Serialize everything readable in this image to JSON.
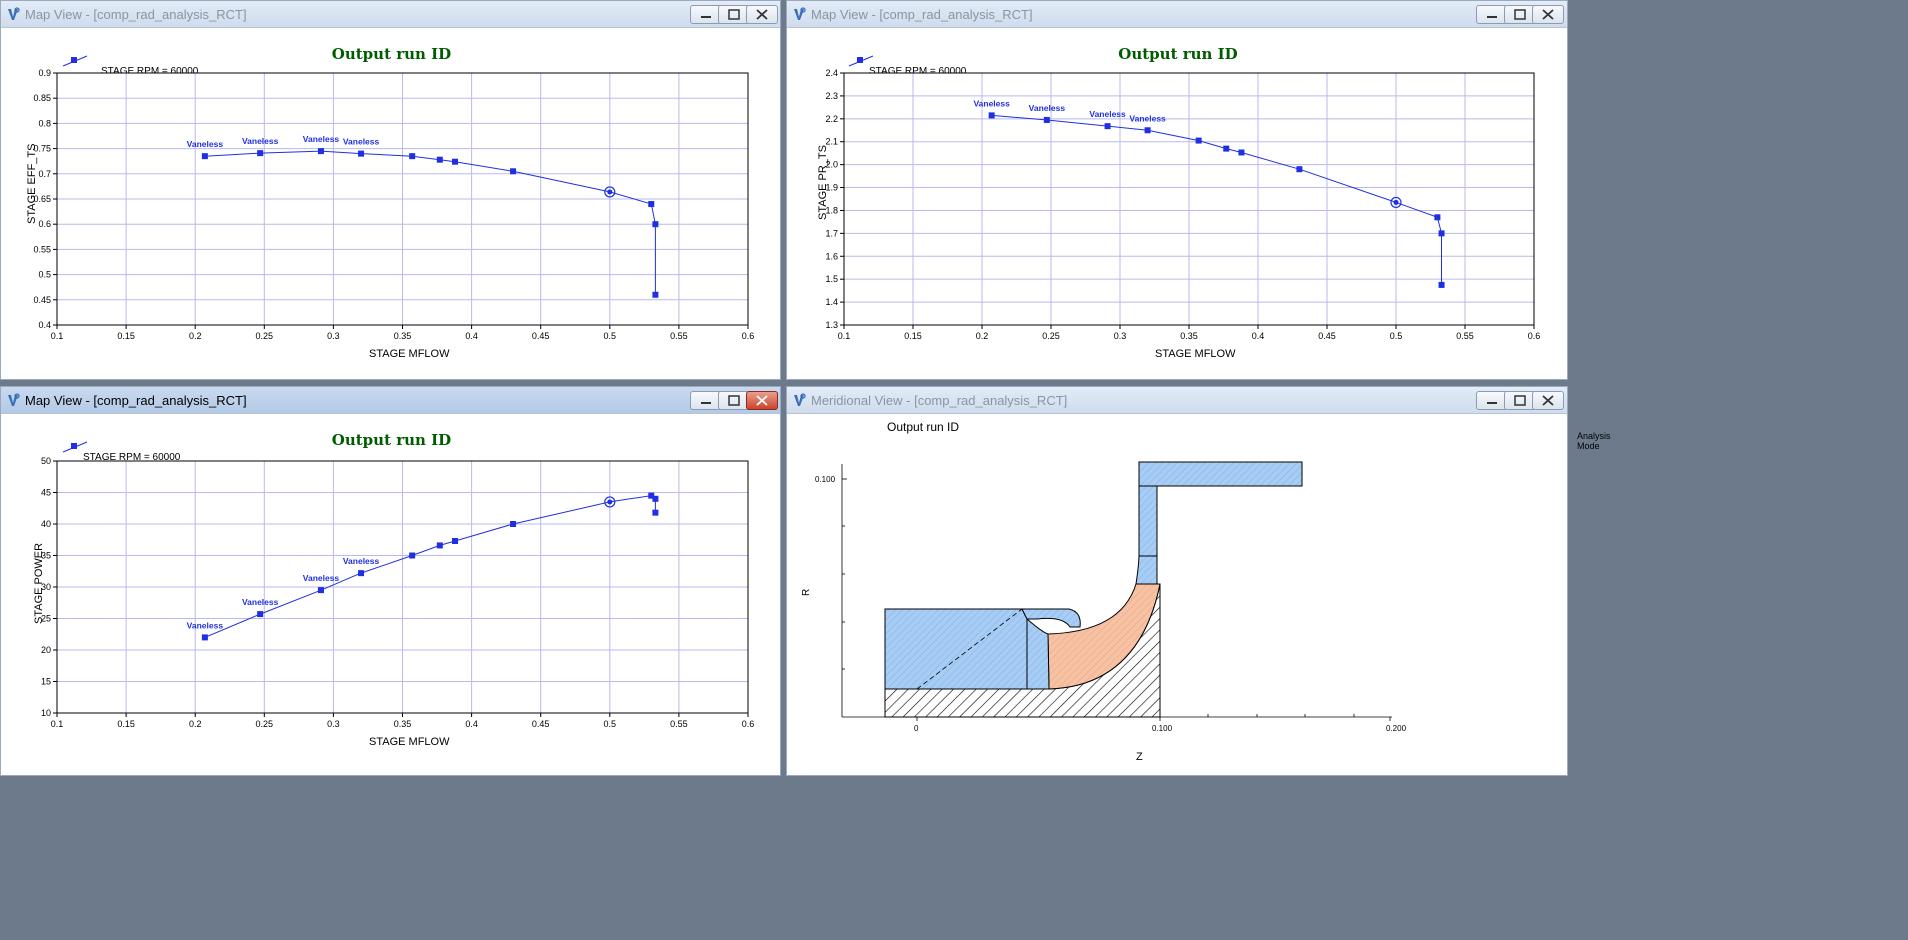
{
  "windows": {
    "eff": {
      "title": "Map View - [comp_rad_analysis_RCT]"
    },
    "pr": {
      "title": "Map View - [comp_rad_analysis_RCT]"
    },
    "power": {
      "title": "Map View - [comp_rad_analysis_RCT]"
    },
    "meridional": {
      "title": "Meridional View - [comp_rad_analysis_RCT]",
      "plot_title": "Output run ID",
      "mode_label": "Analysis Mode",
      "xlabel": "Z",
      "ylabel": "R",
      "x_ticks": [
        "0",
        "0.100",
        "0.200"
      ],
      "y_ticks": [
        "0.100"
      ],
      "colors": {
        "stationary": "#a8cdf5",
        "impeller": "#f7c2a3",
        "hub": "#000000"
      }
    }
  },
  "chart_data": [
    {
      "type": "line",
      "title": "Output run ID",
      "legend": "STAGE RPM = 60000",
      "xlabel": "STAGE MFLOW",
      "ylabel": "STAGE EFF_TS",
      "xlim": [
        0.1,
        0.6
      ],
      "ylim": [
        0.4,
        0.9
      ],
      "x_ticks": [
        "0.1",
        "0.15",
        "0.2",
        "0.25",
        "0.3",
        "0.35",
        "0.4",
        "0.45",
        "0.5",
        "0.55",
        "0.6"
      ],
      "y_ticks": [
        "0.4",
        "0.45",
        "0.5",
        "0.55",
        "0.6",
        "0.65",
        "0.7",
        "0.75",
        "0.8",
        "0.85",
        "0.9"
      ],
      "grid": true,
      "design_point": {
        "x": 0.5,
        "y": 0.664
      },
      "series": [
        {
          "name": "STAGE RPM = 60000",
          "x": [
            0.207,
            0.247,
            0.291,
            0.32,
            0.357,
            0.377,
            0.388,
            0.43,
            0.5,
            0.53,
            0.533,
            0.533
          ],
          "y": [
            0.735,
            0.741,
            0.745,
            0.74,
            0.735,
            0.728,
            0.724,
            0.705,
            0.664,
            0.64,
            0.6,
            0.46
          ],
          "labels": [
            "Vaneless",
            "Vaneless",
            "Vaneless",
            "Vaneless",
            "",
            "",
            "",
            "",
            "",
            "",
            "",
            ""
          ]
        }
      ]
    },
    {
      "type": "line",
      "title": "Output run ID",
      "legend": "STAGE RPM = 60000",
      "xlabel": "STAGE MFLOW",
      "ylabel": "STAGE PR_TS",
      "xlim": [
        0.1,
        0.6
      ],
      "ylim": [
        1.3,
        2.4
      ],
      "x_ticks": [
        "0.1",
        "0.15",
        "0.2",
        "0.25",
        "0.3",
        "0.35",
        "0.4",
        "0.45",
        "0.5",
        "0.55",
        "0.6"
      ],
      "y_ticks": [
        "1.3",
        "1.4",
        "1.5",
        "1.6",
        "1.7",
        "1.8",
        "1.9",
        "2.0",
        "2.1",
        "2.2",
        "2.3",
        "2.4"
      ],
      "grid": true,
      "design_point": {
        "x": 0.5,
        "y": 1.835
      },
      "series": [
        {
          "name": "STAGE RPM = 60000",
          "x": [
            0.207,
            0.247,
            0.291,
            0.32,
            0.357,
            0.377,
            0.388,
            0.43,
            0.5,
            0.53,
            0.533,
            0.533
          ],
          "y": [
            2.215,
            2.195,
            2.168,
            2.15,
            2.105,
            2.07,
            2.053,
            1.98,
            1.835,
            1.77,
            1.7,
            1.475
          ],
          "labels": [
            "Vaneless",
            "Vaneless",
            "Vaneless",
            "Vaneless",
            "",
            "",
            "",
            "",
            "",
            "",
            "",
            ""
          ]
        }
      ]
    },
    {
      "type": "line",
      "title": "Output run ID",
      "legend": "STAGE RPM = 60000",
      "xlabel": "STAGE MFLOW",
      "ylabel": "STAGE POWER",
      "xlim": [
        0.1,
        0.6
      ],
      "ylim": [
        10,
        50
      ],
      "x_ticks": [
        "0.1",
        "0.15",
        "0.2",
        "0.25",
        "0.3",
        "0.35",
        "0.4",
        "0.45",
        "0.5",
        "0.55",
        "0.6"
      ],
      "y_ticks": [
        "10",
        "15",
        "20",
        "25",
        "30",
        "35",
        "40",
        "45",
        "50"
      ],
      "grid": true,
      "design_point": {
        "x": 0.5,
        "y": 43.5
      },
      "series": [
        {
          "name": "STAGE RPM = 60000",
          "x": [
            0.207,
            0.247,
            0.291,
            0.32,
            0.357,
            0.377,
            0.388,
            0.43,
            0.5,
            0.53,
            0.533,
            0.533
          ],
          "y": [
            22.0,
            25.7,
            29.5,
            32.2,
            35.0,
            36.6,
            37.3,
            40.0,
            43.5,
            44.5,
            44.0,
            41.8
          ],
          "labels": [
            "Vaneless",
            "Vaneless",
            "Vaneless",
            "Vaneless",
            "",
            "",
            "",
            "",
            "",
            "",
            "",
            ""
          ]
        }
      ]
    }
  ]
}
